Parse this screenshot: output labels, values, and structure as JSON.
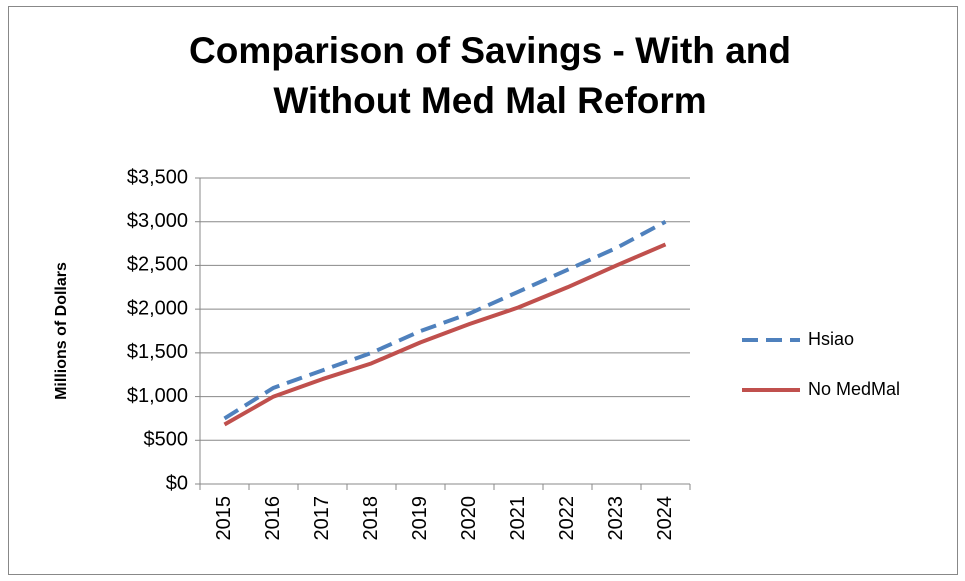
{
  "chart_data": {
    "type": "line",
    "title": "Comparison of Savings - With and Without Med Mal Reform",
    "y_label": "Millions of Dollars",
    "categories": [
      "2015",
      "2016",
      "2017",
      "2018",
      "2019",
      "2020",
      "2021",
      "2022",
      "2023",
      "2024"
    ],
    "series": [
      {
        "name": "Hsiao",
        "color": "#4f81bd",
        "dash": true,
        "values": [
          750,
          1100,
          1300,
          1500,
          1750,
          1950,
          2200,
          2450,
          2700,
          3000
        ]
      },
      {
        "name": "No MedMal",
        "color": "#c0504d",
        "dash": false,
        "values": [
          680,
          1000,
          1200,
          1380,
          1620,
          1830,
          2020,
          2250,
          2500,
          2740
        ]
      }
    ],
    "ylim": [
      0,
      3500
    ],
    "yticks": [
      {
        "value": 0,
        "label": "$0"
      },
      {
        "value": 500,
        "label": "$500"
      },
      {
        "value": 1000,
        "label": "$1,000"
      },
      {
        "value": 1500,
        "label": "$1,500"
      },
      {
        "value": 2000,
        "label": "$2,000"
      },
      {
        "value": 2500,
        "label": "$2,500"
      },
      {
        "value": 3000,
        "label": "$3,000"
      },
      {
        "value": 3500,
        "label": "$3,500"
      }
    ],
    "grid": true,
    "legend": "right"
  }
}
